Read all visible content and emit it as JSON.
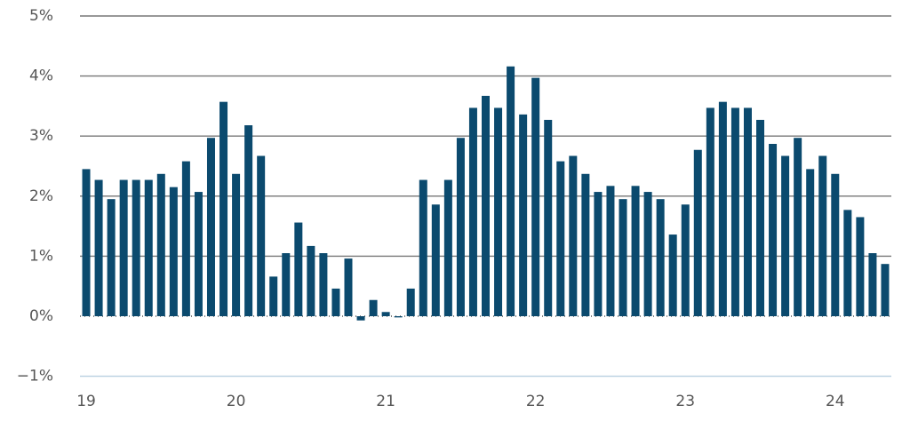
{
  "chart_data": {
    "type": "bar",
    "categories": [
      "19",
      null,
      null,
      null,
      null,
      null,
      null,
      null,
      null,
      null,
      null,
      null,
      "20",
      null,
      null,
      null,
      null,
      null,
      null,
      null,
      null,
      null,
      null,
      null,
      "21",
      null,
      null,
      null,
      null,
      null,
      null,
      null,
      null,
      null,
      null,
      null,
      "22",
      null,
      null,
      null,
      null,
      null,
      null,
      null,
      null,
      null,
      null,
      null,
      "23",
      null,
      null,
      null,
      null,
      null,
      null,
      null,
      null,
      null,
      null,
      null,
      "24",
      null,
      null,
      null,
      null
    ],
    "values": [
      2.45,
      2.27,
      1.95,
      2.27,
      2.27,
      2.27,
      2.37,
      2.15,
      2.58,
      2.07,
      2.97,
      3.57,
      2.37,
      3.18,
      2.67,
      0.66,
      1.05,
      1.56,
      1.17,
      1.05,
      0.46,
      0.96,
      -0.07,
      0.27,
      0.07,
      -0.02,
      0.46,
      2.27,
      1.86,
      2.27,
      2.97,
      3.47,
      3.67,
      3.47,
      4.16,
      3.36,
      3.97,
      3.27,
      2.58,
      2.67,
      2.37,
      2.07,
      2.17,
      1.95,
      2.17,
      2.07,
      1.95,
      1.36,
      1.86,
      2.77,
      3.47,
      3.57,
      3.47,
      3.47,
      3.27,
      2.87,
      2.67,
      2.97,
      2.45,
      2.67,
      2.37,
      1.77,
      1.65,
      1.05,
      0.87
    ],
    "color": "#0b4a6e",
    "ylim": [
      -1,
      5
    ],
    "yticks": [
      {
        "value": -1,
        "label": "−1%"
      },
      {
        "value": 0,
        "label": "0%"
      },
      {
        "value": 1,
        "label": "1%"
      },
      {
        "value": 2,
        "label": "2%"
      },
      {
        "value": 3,
        "label": "3%"
      },
      {
        "value": 4,
        "label": "4%"
      },
      {
        "value": 5,
        "label": "5%"
      }
    ],
    "grid": true
  }
}
